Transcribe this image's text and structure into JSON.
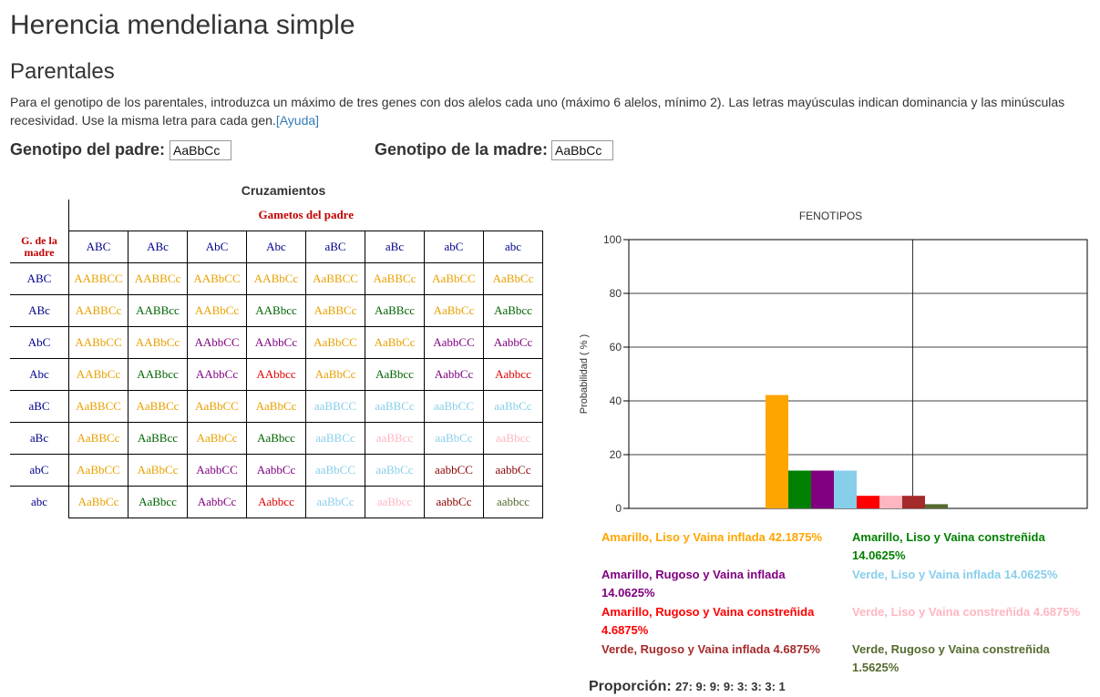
{
  "page": {
    "title": "Herencia mendeliana simple",
    "subtitle": "Parentales",
    "intro_text": "Para el genotipo de los parentales, introduzca un máximo de tres genes con dos alelos cada uno (máximo 6 alelos, mínimo 2). Las letras mayúsculas indican dominancia y las minúsculas recesividad. Use la misma letra para cada gen.",
    "help_link": "[Ayuda]"
  },
  "parents": {
    "father_label": "Genotipo del padre:",
    "father_value": "AaBbCc",
    "mother_label": "Genotipo de la madre:",
    "mother_value": "AaBbCc"
  },
  "punnett": {
    "title": "Cruzamientos",
    "father_gametes_label": "Gametos del padre",
    "mother_gametes_label": "G. de la madre",
    "father_gametes": [
      "ABC",
      "ABc",
      "AbC",
      "Abc",
      "aBC",
      "aBc",
      "abC",
      "abc"
    ],
    "rows": [
      {
        "gamete": "ABC",
        "cells": [
          [
            "AABBCC",
            "#e8a000"
          ],
          [
            "AABBCc",
            "#e8a000"
          ],
          [
            "AABbCC",
            "#e8a000"
          ],
          [
            "AABbCc",
            "#e8a000"
          ],
          [
            "AaBBCC",
            "#e8a000"
          ],
          [
            "AaBBCc",
            "#e8a000"
          ],
          [
            "AaBbCC",
            "#e8a000"
          ],
          [
            "AaBbCc",
            "#e8a000"
          ]
        ]
      },
      {
        "gamete": "ABc",
        "cells": [
          [
            "AABBCc",
            "#e8a000"
          ],
          [
            "AABBcc",
            "#006400"
          ],
          [
            "AABbCc",
            "#e8a000"
          ],
          [
            "AABbcc",
            "#006400"
          ],
          [
            "AaBBCc",
            "#e8a000"
          ],
          [
            "AaBBcc",
            "#006400"
          ],
          [
            "AaBbCc",
            "#e8a000"
          ],
          [
            "AaBbcc",
            "#006400"
          ]
        ]
      },
      {
        "gamete": "AbC",
        "cells": [
          [
            "AABbCC",
            "#e8a000"
          ],
          [
            "AABbCc",
            "#e8a000"
          ],
          [
            "AAbbCC",
            "#800080"
          ],
          [
            "AAbbCc",
            "#800080"
          ],
          [
            "AaBbCC",
            "#e8a000"
          ],
          [
            "AaBbCc",
            "#e8a000"
          ],
          [
            "AabbCC",
            "#800080"
          ],
          [
            "AabbCc",
            "#800080"
          ]
        ]
      },
      {
        "gamete": "Abc",
        "cells": [
          [
            "AABbCc",
            "#e8a000"
          ],
          [
            "AABbcc",
            "#006400"
          ],
          [
            "AAbbCc",
            "#800080"
          ],
          [
            "AAbbcc",
            "#e00000"
          ],
          [
            "AaBbCc",
            "#e8a000"
          ],
          [
            "AaBbcc",
            "#006400"
          ],
          [
            "AabbCc",
            "#800080"
          ],
          [
            "Aabbcc",
            "#e00000"
          ]
        ]
      },
      {
        "gamete": "aBC",
        "cells": [
          [
            "AaBBCC",
            "#e8a000"
          ],
          [
            "AaBBCc",
            "#e8a000"
          ],
          [
            "AaBbCC",
            "#e8a000"
          ],
          [
            "AaBbCc",
            "#e8a000"
          ],
          [
            "aaBBCC",
            "#87ceeb"
          ],
          [
            "aaBBCc",
            "#87ceeb"
          ],
          [
            "aaBbCC",
            "#87ceeb"
          ],
          [
            "aaBbCc",
            "#87ceeb"
          ]
        ]
      },
      {
        "gamete": "aBc",
        "cells": [
          [
            "AaBBCc",
            "#e8a000"
          ],
          [
            "AaBBcc",
            "#006400"
          ],
          [
            "AaBbCc",
            "#e8a000"
          ],
          [
            "AaBbcc",
            "#006400"
          ],
          [
            "aaBBCc",
            "#87ceeb"
          ],
          [
            "aaBBcc",
            "#ffb6c1"
          ],
          [
            "aaBbCc",
            "#87ceeb"
          ],
          [
            "aaBbcc",
            "#ffb6c1"
          ]
        ]
      },
      {
        "gamete": "abC",
        "cells": [
          [
            "AaBbCC",
            "#e8a000"
          ],
          [
            "AaBbCc",
            "#e8a000"
          ],
          [
            "AabbCC",
            "#800080"
          ],
          [
            "AabbCc",
            "#800080"
          ],
          [
            "aaBbCC",
            "#87ceeb"
          ],
          [
            "aaBbCc",
            "#87ceeb"
          ],
          [
            "aabbCC",
            "#8b0000"
          ],
          [
            "aabbCc",
            "#8b0000"
          ]
        ]
      },
      {
        "gamete": "abc",
        "cells": [
          [
            "AaBbCc",
            "#e8a000"
          ],
          [
            "AaBbcc",
            "#006400"
          ],
          [
            "AabbCc",
            "#800080"
          ],
          [
            "Aabbcc",
            "#e00000"
          ],
          [
            "aaBbCc",
            "#87ceeb"
          ],
          [
            "aaBbcc",
            "#ffb6c1"
          ],
          [
            "aabbCc",
            "#8b0000"
          ],
          [
            "aabbcc",
            "#556b2f"
          ]
        ]
      }
    ]
  },
  "chart_data": {
    "type": "bar",
    "title": "FENOTIPOS",
    "ylabel": "Probabilidad ( % )",
    "xlabel": "",
    "ylim": [
      0,
      100
    ],
    "yticks": [
      "0",
      "20",
      "40",
      "60",
      "80",
      "100"
    ],
    "grid": true,
    "series": [
      {
        "value": 42.1875,
        "color": "#ffa500"
      },
      {
        "value": 14.0625,
        "color": "#008000"
      },
      {
        "value": 14.0625,
        "color": "#800080"
      },
      {
        "value": 14.0625,
        "color": "#87ceeb"
      },
      {
        "value": 4.6875,
        "color": "#ff0000"
      },
      {
        "value": 4.6875,
        "color": "#ffb6c1"
      },
      {
        "value": 4.6875,
        "color": "#a52a2a"
      },
      {
        "value": 1.5625,
        "color": "#556b2f"
      }
    ]
  },
  "legend": {
    "items": [
      {
        "label": "Amarillo, Liso y Vaina inflada 42.1875%",
        "color": "#ffa500"
      },
      {
        "label": "Amarillo, Liso y Vaina constreñida 14.0625%",
        "color": "#008000"
      },
      {
        "label": "Amarillo, Rugoso y Vaina inflada 14.0625%",
        "color": "#800080"
      },
      {
        "label": "Verde, Liso y Vaina inflada 14.0625%",
        "color": "#87ceeb"
      },
      {
        "label": "Amarillo, Rugoso y Vaina constreñida 4.6875%",
        "color": "#ff0000"
      },
      {
        "label": "Verde, Liso y Vaina constreñida 4.6875%",
        "color": "#ffb6c1"
      },
      {
        "label": "Verde, Rugoso y Vaina inflada 4.6875%",
        "color": "#a52a2a"
      },
      {
        "label": "Verde, Rugoso y Vaina constreñida 1.5625%",
        "color": "#556b2f"
      }
    ]
  },
  "proportion": {
    "label": "Proporción:",
    "value": "27: 9: 9: 9: 3: 3: 3: 1"
  }
}
